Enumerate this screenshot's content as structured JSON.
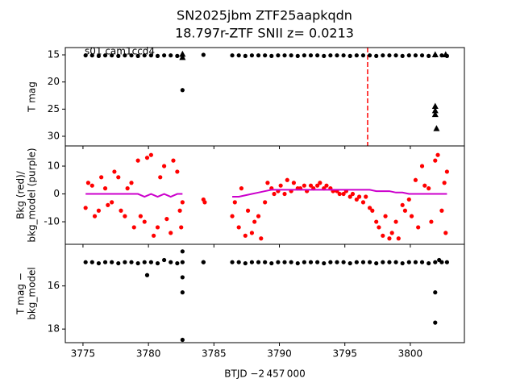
{
  "chart_data": [
    {
      "type": "scatter",
      "title": "SN2025jbm  ZTF25aapkqdn",
      "subtitle": "18.797r-ZTF SNII z= 0.0213",
      "annotation": "s01 cam1ccd4",
      "ylabel": [
        "T mag"
      ],
      "xlim": [
        3773.65,
        3804.13
      ],
      "ylim": [
        31.78,
        13.66
      ],
      "yticks": [
        15,
        20,
        25,
        30
      ],
      "vlines": [
        {
          "x": 3796.74,
          "color": "#ff0000"
        }
      ],
      "series": [
        {
          "marker": "circle",
          "color": "#000000",
          "x": [
            3775.2,
            3775.7,
            3776.2,
            3776.7,
            3777.2,
            3777.7,
            3778.2,
            3778.7,
            3779.2,
            3779.7,
            3780.2,
            3780.7,
            3781.2,
            3781.7,
            3782.2,
            3782.6,
            3784.2,
            3786.4,
            3786.9,
            3787.4,
            3787.9,
            3788.4,
            3788.9,
            3789.4,
            3789.9,
            3790.4,
            3790.9,
            3791.4,
            3791.9,
            3792.4,
            3792.9,
            3793.4,
            3793.9,
            3794.4,
            3794.9,
            3795.4,
            3795.9,
            3796.4,
            3796.9,
            3797.4,
            3797.9,
            3798.4,
            3798.9,
            3799.4,
            3799.9,
            3800.4,
            3800.9,
            3801.4,
            3801.9,
            3802.4,
            3802.8
          ],
          "values": [
            15.1,
            15.1,
            15.2,
            15.1,
            15.1,
            15.2,
            15.1,
            15.1,
            15.2,
            15.1,
            15.1,
            15.2,
            15.1,
            15.1,
            15.2,
            21.5,
            15.0,
            15.1,
            15.1,
            15.2,
            15.1,
            15.1,
            15.1,
            15.2,
            15.1,
            15.1,
            15.1,
            15.2,
            15.1,
            15.1,
            15.1,
            15.2,
            15.1,
            15.1,
            15.1,
            15.2,
            15.1,
            15.1,
            15.1,
            15.2,
            15.1,
            15.1,
            15.1,
            15.2,
            15.1,
            15.1,
            15.1,
            15.2,
            15.1,
            15.1,
            15.2
          ]
        },
        {
          "marker": "triangle",
          "color": "#000000",
          "x": [
            3782.6,
            3782.6,
            3801.9,
            3801.9,
            3801.9,
            3802.0,
            3801.9,
            3802.7
          ],
          "values": [
            14.9,
            15.5,
            24.5,
            25.3,
            26.0,
            28.6,
            15.0,
            15.0
          ]
        }
      ]
    },
    {
      "type": "scatter",
      "ylabel": [
        "Bkg (red)/",
        "bkg_model (purple)"
      ],
      "xlim": [
        3773.65,
        3804.13
      ],
      "ylim": [
        -18.1,
        17.25
      ],
      "yticks": [
        -10,
        0,
        10
      ],
      "series": [
        {
          "marker": "circle",
          "color": "#ff0000",
          "x": [
            3775.2,
            3775.7,
            3776.2,
            3776.7,
            3777.2,
            3777.7,
            3778.2,
            3778.7,
            3779.2,
            3779.7,
            3780.2,
            3780.7,
            3781.2,
            3781.7,
            3782.2,
            3782.6,
            3784.2,
            3786.4,
            3786.9,
            3787.4,
            3787.9,
            3788.4,
            3788.9,
            3789.4,
            3789.9,
            3790.4,
            3790.9,
            3791.4,
            3791.9,
            3792.4,
            3792.9,
            3793.4,
            3793.9,
            3794.4,
            3794.9,
            3795.4,
            3795.9,
            3796.4,
            3796.9,
            3797.4,
            3797.9,
            3798.4,
            3798.9,
            3799.4,
            3799.9,
            3800.4,
            3800.9,
            3801.4,
            3801.9,
            3802.4,
            3802.8
          ],
          "values": [
            -5,
            3,
            -6,
            2,
            -3,
            6,
            -8,
            4,
            12,
            -10,
            14,
            -12,
            10,
            -14,
            8,
            -3,
            -2,
            -8,
            -12,
            -15,
            -14,
            -8,
            -3,
            2,
            1,
            0,
            1,
            2,
            3,
            3,
            3,
            2,
            2,
            1,
            0,
            -1,
            -2,
            -3,
            -5,
            -10,
            -15,
            -16,
            -10,
            -4,
            -2,
            5,
            10,
            2,
            12,
            -6,
            8
          ]
        },
        {
          "marker": "circle",
          "color": "#ff0000",
          "x": [
            3775.4,
            3775.9,
            3776.4,
            3776.9,
            3777.4,
            3777.9,
            3778.4,
            3778.9,
            3779.4,
            3779.9,
            3780.4,
            3780.9,
            3781.4,
            3781.9,
            3782.4,
            3782.5,
            3784.3,
            3786.6,
            3787.1,
            3787.6,
            3788.1,
            3788.6,
            3789.1,
            3789.6,
            3790.1,
            3790.6,
            3791.1,
            3791.6,
            3792.1,
            3792.6,
            3793.1,
            3793.6,
            3794.1,
            3794.6,
            3795.1,
            3795.6,
            3796.1,
            3796.6,
            3797.1,
            3797.6,
            3798.1,
            3798.6,
            3799.1,
            3799.6,
            3800.1,
            3800.6,
            3801.1,
            3801.6,
            3802.1,
            3802.6,
            3802.7
          ],
          "values": [
            4,
            -8,
            6,
            -4,
            8,
            -6,
            2,
            -12,
            -8,
            13,
            -15,
            6,
            -9,
            12,
            -6,
            -12,
            -3,
            -3,
            2,
            -6,
            -10,
            -16,
            4,
            0,
            3,
            5,
            4,
            2,
            1,
            2,
            4,
            3,
            1,
            0,
            1,
            0,
            -1,
            -1,
            -6,
            -12,
            -8,
            -14,
            -16,
            -6,
            -8,
            -12,
            3,
            -10,
            14,
            4,
            -14
          ]
        },
        {
          "marker": "line",
          "color": "#cc00cc",
          "x": [
            3775.2,
            3775.7,
            3776.2,
            3776.7,
            3777.2,
            3777.7,
            3778.2,
            3778.7,
            3779.2,
            3779.7,
            3780.2,
            3780.7,
            3781.2,
            3781.7,
            3782.2,
            3782.6,
            3784.2,
            3786.4,
            3786.9,
            3787.4,
            3787.9,
            3788.4,
            3788.9,
            3789.4,
            3789.9,
            3790.4,
            3790.9,
            3791.4,
            3791.9,
            3792.4,
            3792.9,
            3793.4,
            3793.9,
            3794.4,
            3794.9,
            3795.4,
            3795.9,
            3796.4,
            3796.9,
            3797.4,
            3797.9,
            3798.4,
            3798.9,
            3799.4,
            3799.9,
            3800.4,
            3800.9,
            3801.4,
            3801.9,
            3802.4,
            3802.8
          ],
          "values": [
            0,
            0,
            0,
            0,
            0,
            0,
            0,
            0,
            0,
            -1,
            0,
            -1,
            0,
            -1,
            0,
            0,
            null,
            -1,
            -1,
            -0.5,
            0,
            0.5,
            1,
            1.5,
            1.5,
            1.5,
            1.5,
            1.5,
            1.5,
            1.5,
            1.5,
            1.5,
            1.5,
            1.5,
            1.5,
            1.5,
            1.5,
            1.5,
            1.5,
            1,
            1,
            1,
            0.5,
            0.5,
            0,
            0,
            0,
            0,
            0,
            0,
            0
          ]
        }
      ]
    },
    {
      "type": "scatter",
      "ylabel": [
        "T mag −",
        "bkg_model"
      ],
      "xlabel": "BTJD −2 457 000",
      "xlim": [
        3773.65,
        3804.13
      ],
      "ylim": [
        18.63,
        14.07
      ],
      "yticks": [
        16,
        18
      ],
      "xticks": [
        3775,
        3780,
        3785,
        3790,
        3795,
        3800
      ],
      "series": [
        {
          "marker": "circle",
          "color": "#000000",
          "x": [
            3775.2,
            3775.7,
            3776.2,
            3776.7,
            3777.2,
            3777.7,
            3778.2,
            3778.7,
            3779.2,
            3779.7,
            3780.2,
            3780.7,
            3781.2,
            3781.7,
            3782.2,
            3782.6,
            3784.2,
            3786.4,
            3786.9,
            3787.4,
            3787.9,
            3788.4,
            3788.9,
            3789.4,
            3789.9,
            3790.4,
            3790.9,
            3791.4,
            3791.9,
            3792.4,
            3792.9,
            3793.4,
            3793.9,
            3794.4,
            3794.9,
            3795.4,
            3795.9,
            3796.4,
            3796.9,
            3797.4,
            3797.9,
            3798.4,
            3798.9,
            3799.4,
            3799.9,
            3800.4,
            3800.9,
            3801.4,
            3801.9,
            3802.4,
            3802.8
          ],
          "values": [
            14.9,
            14.9,
            14.95,
            14.9,
            14.9,
            14.95,
            14.9,
            14.9,
            14.95,
            14.9,
            14.9,
            14.95,
            14.8,
            14.9,
            14.95,
            14.9,
            14.9,
            14.9,
            14.9,
            14.95,
            14.9,
            14.9,
            14.9,
            14.95,
            14.9,
            14.9,
            14.9,
            14.95,
            14.9,
            14.9,
            14.9,
            14.95,
            14.9,
            14.9,
            14.9,
            14.95,
            14.9,
            14.9,
            14.9,
            14.95,
            14.9,
            14.9,
            14.9,
            14.95,
            14.9,
            14.9,
            14.9,
            14.95,
            14.9,
            14.9,
            14.9
          ]
        },
        {
          "marker": "circle",
          "color": "#000000",
          "x": [
            3779.9,
            3782.6,
            3782.6,
            3782.6,
            3782.6,
            3784.2,
            3801.9,
            3801.9,
            3802.2
          ],
          "values": [
            15.5,
            14.4,
            15.6,
            16.3,
            18.5,
            14.9,
            16.3,
            17.7,
            14.8
          ]
        }
      ]
    }
  ]
}
